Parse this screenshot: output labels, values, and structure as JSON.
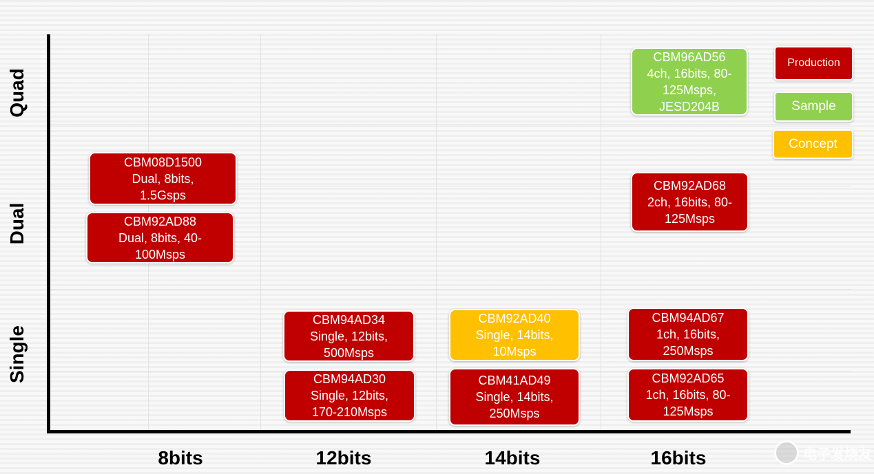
{
  "axes": {
    "y_labels": [
      "Quad",
      "Dual",
      "Single"
    ],
    "x_labels": [
      "8bits",
      "12bits",
      "14bits",
      "16bits"
    ]
  },
  "legend": [
    {
      "label": "Production",
      "status": "production"
    },
    {
      "label": "Sample",
      "status": "sample"
    },
    {
      "label": "Concept",
      "status": "concept"
    }
  ],
  "colors": {
    "production": "#c00000",
    "sample": "#8fd14f",
    "concept": "#ffc000"
  },
  "products": [
    {
      "name": "CBM96AD56",
      "line1": "4ch, 16bits, 80-",
      "line2": "125Msps,",
      "line3": "JESD204B",
      "status": "sample",
      "resolution": "16bits",
      "channels": "Quad"
    },
    {
      "name": "CBM08D1500",
      "line1": "Dual, 8bits,",
      "line2": "1.5Gsps",
      "status": "production",
      "resolution": "8bits",
      "channels": "Dual"
    },
    {
      "name": "CBM92AD88",
      "line1": "Dual, 8bits, 40-",
      "line2": "100Msps",
      "status": "production",
      "resolution": "8bits",
      "channels": "Dual"
    },
    {
      "name": "CBM92AD68",
      "line1": "2ch, 16bits, 80-",
      "line2": "125Msps",
      "status": "production",
      "resolution": "16bits",
      "channels": "Dual"
    },
    {
      "name": "CBM94AD34",
      "line1": "Single, 12bits,",
      "line2": "500Msps",
      "status": "production",
      "resolution": "12bits",
      "channels": "Single"
    },
    {
      "name": "CBM92AD40",
      "line1": "Single, 14bits,",
      "line2": "10Msps",
      "status": "concept",
      "resolution": "14bits",
      "channels": "Single"
    },
    {
      "name": "CBM94AD67",
      "line1": "1ch, 16bits,",
      "line2": "250Msps",
      "status": "production",
      "resolution": "16bits",
      "channels": "Single"
    },
    {
      "name": "CBM94AD30",
      "line1": "Single, 12bits,",
      "line2": "170-210Msps",
      "status": "production",
      "resolution": "12bits",
      "channels": "Single"
    },
    {
      "name": "CBM41AD49",
      "line1": "Single, 14bits,",
      "line2": "250Msps",
      "status": "production",
      "resolution": "14bits",
      "channels": "Single"
    },
    {
      "name": "CBM92AD65",
      "line1": "1ch, 16bits, 80-",
      "line2": "125Msps",
      "status": "production",
      "resolution": "16bits",
      "channels": "Single"
    }
  ],
  "watermark": {
    "text": "电子发烧友"
  }
}
